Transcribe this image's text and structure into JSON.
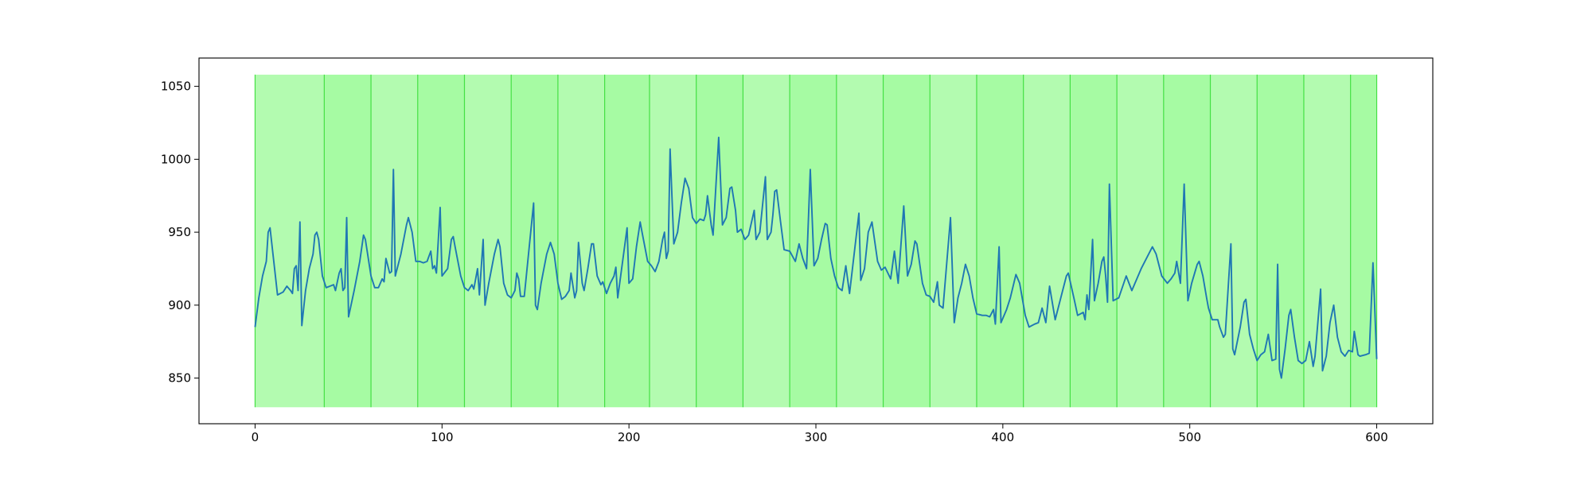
{
  "chart_data": {
    "type": "line",
    "x": [
      0,
      2,
      4,
      6,
      7,
      8,
      10,
      12,
      15,
      17,
      19,
      20,
      21,
      22,
      23,
      24,
      25,
      27,
      29,
      31,
      32,
      33,
      34,
      36,
      38,
      40,
      42,
      43,
      45,
      46,
      47,
      48,
      49,
      50,
      53,
      56,
      58,
      59,
      62,
      64,
      66,
      68,
      69,
      70,
      72,
      73,
      74,
      75,
      78,
      81,
      82,
      84,
      86,
      88,
      90,
      92,
      94,
      95,
      96,
      97,
      99,
      100,
      103,
      105,
      106,
      107,
      110,
      112,
      114,
      116,
      117,
      119,
      120,
      122,
      123,
      125,
      128,
      130,
      131,
      133,
      135,
      137,
      139,
      140,
      141,
      142,
      144,
      149,
      150,
      151,
      153,
      156,
      158,
      160,
      162,
      164,
      166,
      168,
      169,
      171,
      172,
      173,
      175,
      176,
      178,
      180,
      181,
      183,
      185,
      186,
      188,
      190,
      192,
      193,
      194,
      199,
      200,
      202,
      204,
      206,
      207,
      210,
      212,
      214,
      216,
      218,
      219,
      220,
      221,
      222,
      224,
      226,
      228,
      230,
      232,
      234,
      236,
      238,
      240,
      241,
      242,
      244,
      245,
      248,
      250,
      252,
      254,
      255,
      257,
      258,
      260,
      262,
      264,
      267,
      268,
      270,
      273,
      274,
      276,
      277,
      278,
      279,
      281,
      283,
      286,
      289,
      291,
      293,
      295,
      297,
      299,
      301,
      303,
      305,
      306,
      308,
      310,
      312,
      314,
      316,
      318,
      323,
      324,
      326,
      328,
      330,
      333,
      335,
      337,
      340,
      342,
      344,
      347,
      349,
      351,
      353,
      354,
      357,
      359,
      361,
      363,
      365,
      366,
      368,
      372,
      374,
      376,
      378,
      380,
      382,
      384,
      386,
      389,
      391,
      393,
      395,
      396,
      398,
      399,
      402,
      404,
      407,
      409,
      412,
      414,
      417,
      419,
      421,
      423,
      425,
      428,
      431,
      434,
      435,
      438,
      440,
      443,
      444,
      445,
      446,
      448,
      449,
      451,
      453,
      454,
      455,
      456,
      457,
      459,
      462,
      466,
      469,
      474,
      480,
      482,
      485,
      488,
      490,
      492,
      493,
      495,
      497,
      499,
      501,
      504,
      505,
      507,
      509,
      510,
      512,
      515,
      516,
      518,
      519,
      522,
      523,
      524,
      527,
      529,
      530,
      532,
      534,
      536,
      538,
      540,
      542,
      544,
      546,
      547,
      548,
      549,
      551,
      553,
      554,
      556,
      558,
      560,
      562,
      564,
      566,
      567,
      570,
      571,
      573,
      575,
      577,
      579,
      581,
      583,
      585,
      587,
      588,
      590,
      591,
      594,
      596,
      598,
      600
    ],
    "series": [
      {
        "color": "#1f77b4",
        "values": [
          885,
          905,
          920,
          930,
          950,
          953,
          930,
          907,
          909,
          913,
          910,
          908,
          925,
          927,
          910,
          957,
          886,
          910,
          925,
          935,
          948,
          950,
          945,
          920,
          912,
          913,
          914,
          910,
          922,
          925,
          910,
          912,
          960,
          892,
          910,
          930,
          948,
          945,
          920,
          912,
          912,
          918,
          916,
          932,
          922,
          923,
          993,
          920,
          935,
          955,
          960,
          950,
          930,
          930,
          929,
          930,
          937,
          925,
          927,
          922,
          967,
          920,
          925,
          945,
          947,
          940,
          920,
          912,
          910,
          914,
          911,
          925,
          907,
          945,
          900,
          915,
          935,
          945,
          940,
          915,
          907,
          905,
          910,
          922,
          918,
          906,
          906,
          970,
          900,
          897,
          915,
          935,
          943,
          935,
          915,
          904,
          906,
          910,
          922,
          905,
          910,
          943,
          915,
          910,
          925,
          942,
          942,
          920,
          914,
          916,
          908,
          915,
          920,
          926,
          905,
          953,
          915,
          918,
          940,
          957,
          950,
          930,
          927,
          923,
          930,
          945,
          950,
          932,
          937,
          1007,
          942,
          950,
          970,
          987,
          980,
          960,
          956,
          959,
          958,
          962,
          975,
          955,
          948,
          1015,
          955,
          960,
          980,
          981,
          965,
          950,
          952,
          945,
          948,
          965,
          945,
          950,
          988,
          945,
          950,
          962,
          978,
          979,
          958,
          938,
          937,
          930,
          942,
          932,
          925,
          993,
          927,
          932,
          945,
          956,
          955,
          932,
          920,
          912,
          910,
          927,
          908,
          963,
          917,
          925,
          950,
          957,
          930,
          924,
          926,
          918,
          937,
          915,
          968,
          920,
          928,
          944,
          942,
          915,
          907,
          906,
          902,
          916,
          900,
          898,
          960,
          888,
          905,
          915,
          928,
          920,
          905,
          894,
          893,
          893,
          892,
          897,
          887,
          940,
          888,
          897,
          905,
          921,
          915,
          893,
          885,
          887,
          888,
          898,
          888,
          913,
          890,
          905,
          920,
          922,
          905,
          893,
          895,
          890,
          907,
          897,
          945,
          903,
          915,
          930,
          933,
          920,
          902,
          983,
          903,
          905,
          920,
          910,
          925,
          940,
          935,
          920,
          915,
          918,
          922,
          930,
          915,
          983,
          903,
          915,
          928,
          930,
          920,
          905,
          898,
          890,
          890,
          885,
          878,
          880,
          942,
          870,
          866,
          885,
          902,
          904,
          880,
          870,
          862,
          866,
          868,
          880,
          862,
          863,
          928,
          856,
          850,
          870,
          893,
          897,
          878,
          862,
          860,
          862,
          875,
          858,
          865,
          911,
          855,
          865,
          888,
          900,
          878,
          868,
          865,
          869,
          868,
          882,
          866,
          865,
          866,
          867,
          929,
          863
        ]
      }
    ],
    "spans": [
      0,
      37,
      62,
      87,
      112,
      137,
      162,
      187,
      211,
      236,
      261,
      286,
      311,
      336,
      361,
      386,
      411,
      436,
      461,
      486,
      511,
      536,
      561,
      586,
      600
    ],
    "span_ylim": [
      830,
      1058
    ],
    "span_colors": [
      "#b3fbb0",
      "#a6fba3"
    ],
    "span_edge_color": "#44e044",
    "xlim": [
      -30,
      630
    ],
    "ylim": [
      818.7,
      1069.4
    ],
    "xticks": [
      0,
      100,
      200,
      300,
      400,
      500,
      600
    ],
    "yticks": [
      850,
      900,
      950,
      1000,
      1050
    ]
  }
}
